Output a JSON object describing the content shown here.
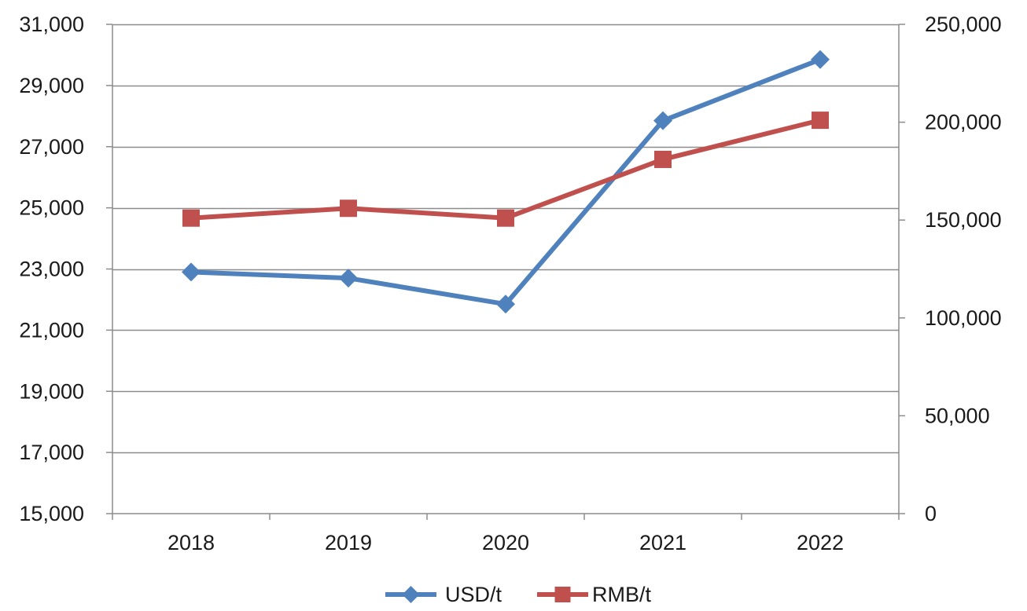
{
  "chart_data": {
    "type": "line",
    "categories": [
      "2018",
      "2019",
      "2020",
      "2021",
      "2022"
    ],
    "series": [
      {
        "name": "USD/t",
        "axis": "left",
        "color": "#4f81bd",
        "marker": "diamond",
        "values": [
          22900,
          22700,
          21850,
          27850,
          29850
        ]
      },
      {
        "name": "RMB/t",
        "axis": "right",
        "color": "#c0504d",
        "marker": "square",
        "values": [
          151000,
          156000,
          151000,
          181000,
          201000
        ]
      }
    ],
    "y_left": {
      "ylim": [
        15000,
        31000
      ],
      "ticks": [
        15000,
        17000,
        19000,
        21000,
        23000,
        25000,
        27000,
        29000,
        31000
      ],
      "tick_labels": [
        "15,000",
        "17,000",
        "19,000",
        "21,000",
        "23,000",
        "25,000",
        "27,000",
        "29,000",
        "31,000"
      ]
    },
    "y_right": {
      "ylim": [
        0,
        250000
      ],
      "ticks": [
        0,
        50000,
        100000,
        150000,
        200000,
        250000
      ],
      "tick_labels": [
        "0",
        "50,000",
        "100,000",
        "150,000",
        "200,000",
        "250,000"
      ]
    },
    "grid": "horizontal",
    "legend": "bottom",
    "title": "",
    "xlabel": "",
    "ylabel": ""
  }
}
